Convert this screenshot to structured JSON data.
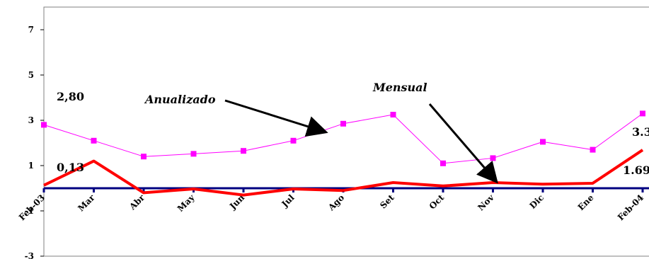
{
  "chart_data": {
    "type": "line",
    "categories": [
      "Feb-03",
      "Mar",
      "Abr",
      "May",
      "Jun",
      "Jul",
      "Ago",
      "Set",
      "Oct",
      "Nov",
      "Dic",
      "Ene",
      "Feb-04"
    ],
    "x_tick_labels": [
      "Feb-03",
      "Mar",
      "Abr",
      "May",
      "Jun",
      "Jul",
      "Ago",
      "Set",
      "Oct",
      "Nov",
      "Dic",
      "Ene",
      "Feb-04"
    ],
    "y_tick_labels": [
      "7",
      "5",
      "3",
      "1",
      "-1",
      "-3"
    ],
    "y_ticks": [
      7,
      5,
      3,
      1,
      -1,
      -3
    ],
    "ylim": [
      -3,
      8
    ],
    "series": [
      {
        "values": [
          2.8,
          2.1,
          1.4,
          1.52,
          1.65,
          2.1,
          2.85,
          3.25,
          1.1,
          1.33,
          2.05,
          1.7,
          3.3
        ],
        "color": "#ff00ff",
        "marker": "square"
      },
      {
        "values": [
          0.13,
          1.2,
          -0.2,
          -0.03,
          -0.3,
          -0.03,
          -0.1,
          0.25,
          0.1,
          0.25,
          0.18,
          0.22,
          1.69
        ],
        "color": "#ff0000",
        "marker": "none"
      }
    ],
    "zero_line_color": "#000080",
    "annotations": {
      "anualizado_label": "Anualizado",
      "mensual_label": "Mensual",
      "start_annual": "2,80",
      "start_monthly": "0,13",
      "end_annual": "3.3",
      "end_monthly": "1.69"
    },
    "grid": false,
    "legend": "none"
  }
}
